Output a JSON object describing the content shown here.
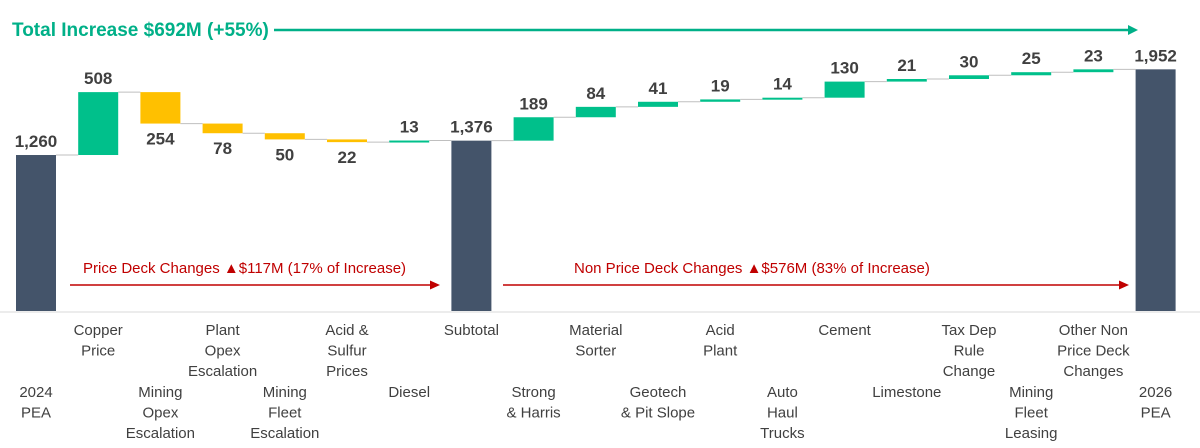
{
  "chart_data": {
    "type": "bar",
    "subtype": "waterfall",
    "title": "Total Increase $692M (+55%)",
    "unit": "$M",
    "categories": [
      "2024 PEA",
      "Copper Price",
      "Mining Opex Escalation",
      "Plant Opex Escalation",
      "Mining Fleet Escalation",
      "Acid & Sulfur Prices",
      "Diesel",
      "Subtotal",
      "Strong & Harris",
      "Material Sorter",
      "Geotech & Pit Slope",
      "Acid Plant",
      "Auto Haul Trucks",
      "Cement",
      "Limestone",
      "Tax Dep Rule Change",
      "Mining Fleet Leasing",
      "Other Non Price Deck Changes",
      "2026 PEA"
    ],
    "category_lines": [
      [
        "2024",
        "PEA"
      ],
      [
        "Copper",
        "Price"
      ],
      [
        "Mining",
        "Opex",
        "Escalation"
      ],
      [
        "Plant",
        "Opex",
        "Escalation"
      ],
      [
        "Mining",
        "Fleet",
        "Escalation"
      ],
      [
        "Acid &",
        "Sulfur",
        "Prices"
      ],
      [
        "Diesel"
      ],
      [
        "Subtotal"
      ],
      [
        "Strong",
        "& Harris"
      ],
      [
        "Material",
        "Sorter"
      ],
      [
        "Geotech",
        "& Pit Slope"
      ],
      [
        "Acid",
        "Plant"
      ],
      [
        "Auto",
        "Haul",
        "Trucks"
      ],
      [
        "Cement"
      ],
      [
        "Limestone"
      ],
      [
        "Tax Dep",
        "Rule",
        "Change"
      ],
      [
        "Mining",
        "Fleet",
        "Leasing"
      ],
      [
        "Other Non",
        "Price Deck",
        "Changes"
      ],
      [
        "2026",
        "PEA"
      ]
    ],
    "bar_kind": [
      "total",
      "increase",
      "decrease",
      "decrease",
      "decrease",
      "decrease",
      "increase",
      "total",
      "increase",
      "increase",
      "increase",
      "increase",
      "increase",
      "increase",
      "increase",
      "increase",
      "increase",
      "increase",
      "total"
    ],
    "values": [
      1260,
      508,
      -254,
      -78,
      -50,
      -22,
      13,
      1376,
      189,
      84,
      41,
      19,
      14,
      130,
      21,
      30,
      25,
      23,
      1952
    ],
    "labels": [
      "1,260",
      "508",
      "254",
      "78",
      "50",
      "22",
      "13",
      "1,376",
      "189",
      "84",
      "41",
      "19",
      "14",
      "130",
      "21",
      "30",
      "25",
      "23",
      "1,952"
    ],
    "annotations": {
      "price_deck": "Price Deck Changes ▲$117M (17% of Increase)",
      "non_price_deck": "Non Price Deck Changes ▲$576M (83% of Increase)"
    },
    "colors": {
      "total": "#44546a",
      "increase": "#00c08b",
      "decrease": "#ffc000",
      "title": "#00b088",
      "annotation": "#c00000",
      "arrow": "#c00000",
      "text": "#404040"
    },
    "grid": false,
    "legend": "none"
  }
}
